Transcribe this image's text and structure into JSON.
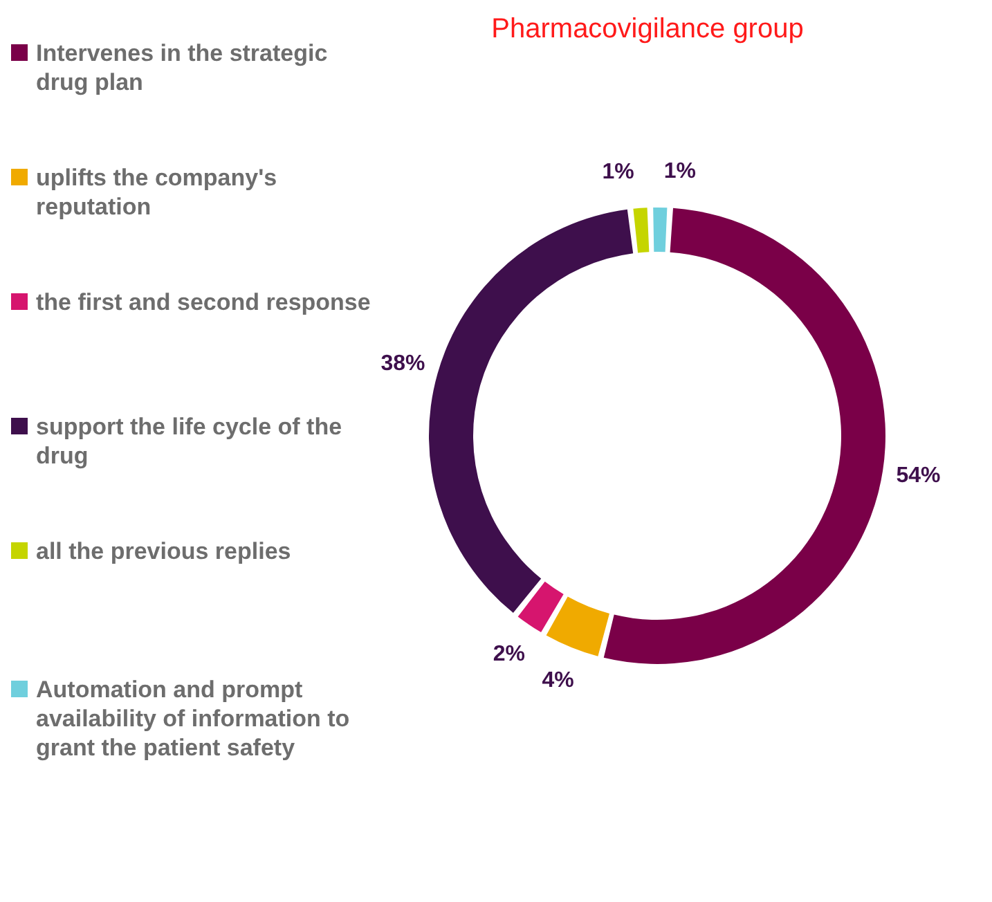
{
  "chart_data": {
    "type": "donut",
    "title": "Pharmacovigilance group",
    "categories": [
      "Intervenes in the strategic drug plan",
      "uplifts the company's reputation",
      "the first and second response",
      "support the life cycle of the drug",
      "all the previous replies",
      "Automation and prompt availability of information to grant the patient safety"
    ],
    "values": [
      54,
      4,
      2,
      38,
      1,
      1
    ],
    "colors": [
      "#7a0048",
      "#f0aa00",
      "#d6156e",
      "#3e0f4c",
      "#c5d500",
      "#6fcfdd"
    ],
    "value_labels": [
      "54%",
      "4%",
      "2%",
      "38%",
      "1%",
      "1%"
    ],
    "legend": "left"
  }
}
